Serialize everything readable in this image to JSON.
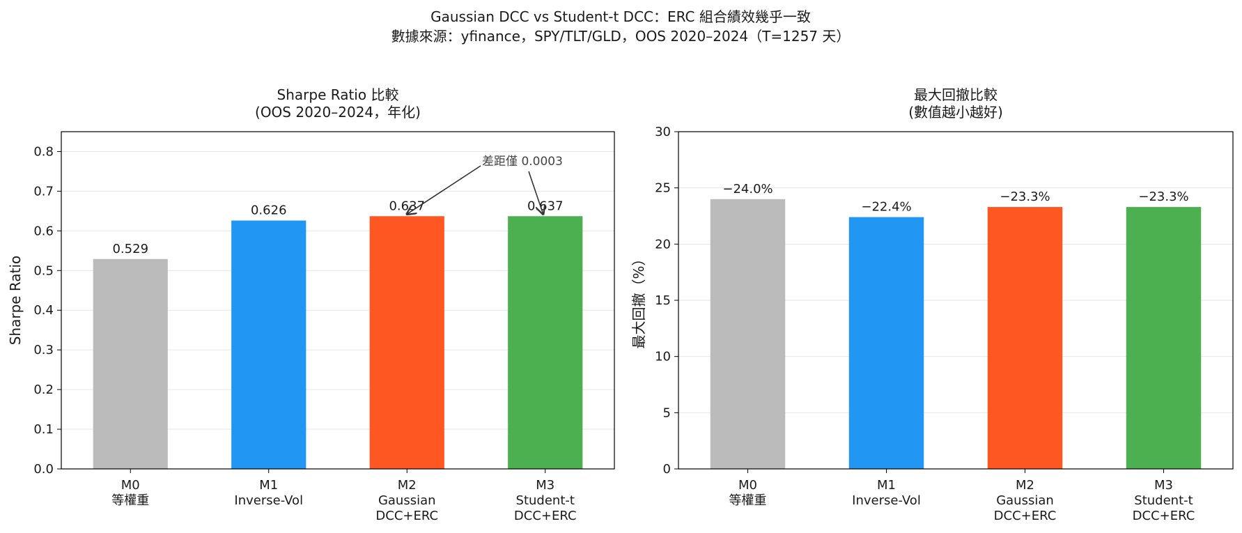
{
  "suptitle_line1": "Gaussian DCC vs Student-t DCC：ERC 組合績效幾乎一致",
  "suptitle_line2": "數據來源：yfinance，SPY/TLT/GLD，OOS 2020–2024（T=1257 天）",
  "colors": [
    "#BBBBBB",
    "#2196F3",
    "#FF5722",
    "#4CAF50"
  ],
  "chart_data": [
    {
      "type": "bar",
      "title": "Sharpe Ratio 比較",
      "subtitle": "(OOS 2020–2024，年化)",
      "xlabel": "",
      "ylabel": "Sharpe Ratio",
      "ylim": [
        0,
        0.85
      ],
      "yticks": [
        "0.0",
        "0.1",
        "0.2",
        "0.3",
        "0.4",
        "0.5",
        "0.6",
        "0.7",
        "0.8"
      ],
      "grid": true,
      "categories": [
        [
          "M0",
          "等權重"
        ],
        [
          "M1",
          "Inverse-Vol"
        ],
        [
          "M2",
          "Gaussian",
          "DCC+ERC"
        ],
        [
          "M3",
          "Student-t",
          "DCC+ERC"
        ]
      ],
      "values": [
        0.529,
        0.626,
        0.637,
        0.637
      ],
      "value_labels": [
        "0.529",
        "0.626",
        "0.637",
        "0.637"
      ],
      "annotation": "差距僅 0.0003"
    },
    {
      "type": "bar",
      "title": "最大回撤比較",
      "subtitle": "(數值越小越好)",
      "xlabel": "",
      "ylabel": "最大回撤（%）",
      "ylim": [
        0,
        30
      ],
      "yticks": [
        "0",
        "5",
        "10",
        "15",
        "20",
        "25",
        "30"
      ],
      "grid": true,
      "categories": [
        [
          "M0",
          "等權重"
        ],
        [
          "M1",
          "Inverse-Vol"
        ],
        [
          "M2",
          "Gaussian",
          "DCC+ERC"
        ],
        [
          "M3",
          "Student-t",
          "DCC+ERC"
        ]
      ],
      "values": [
        24.0,
        22.4,
        23.3,
        23.3
      ],
      "value_labels": [
        "−24.0%",
        "−22.4%",
        "−23.3%",
        "−23.3%"
      ]
    }
  ]
}
